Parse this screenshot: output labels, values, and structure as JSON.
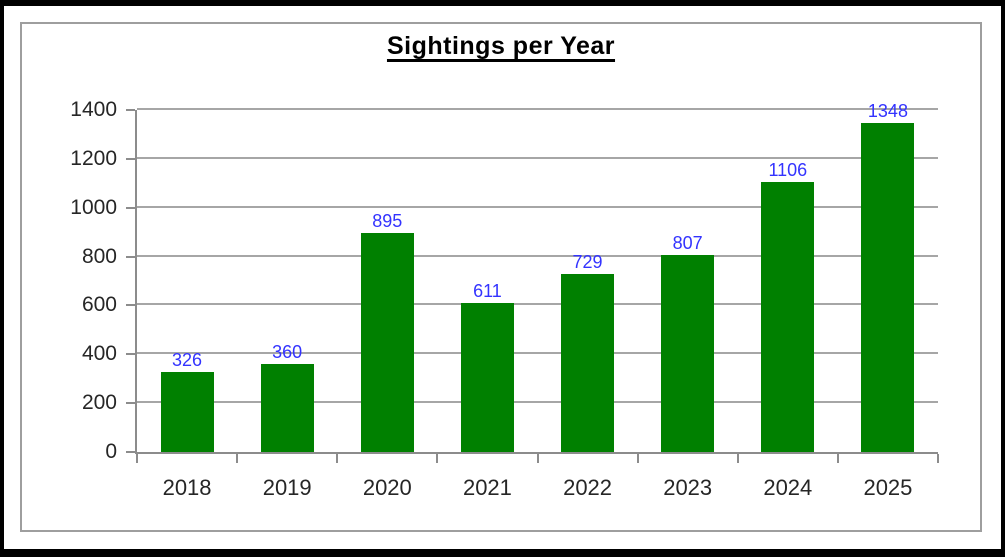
{
  "chart_data": {
    "type": "bar",
    "title": "Sightings per Year",
    "categories": [
      "2018",
      "2019",
      "2020",
      "2021",
      "2022",
      "2023",
      "2024",
      "2025"
    ],
    "values": [
      326,
      360,
      895,
      611,
      729,
      807,
      1106,
      1348
    ],
    "data_labels": [
      "326",
      "360",
      "895",
      "611",
      "729",
      "807",
      "1106",
      "1348"
    ],
    "xlabel": "",
    "ylabel": "",
    "ylim": [
      0,
      1400
    ],
    "ytick_step": 200,
    "ytick_labels": [
      "0",
      "200",
      "400",
      "600",
      "800",
      "1000",
      "1200",
      "1400"
    ],
    "grid": true,
    "legend": false
  },
  "style": {
    "bar_color": "#008000",
    "data_label_color": "#3333ff",
    "gridline_color": "#a6a6a6",
    "axis_color": "#8c8c8c",
    "axis_text_color": "#262626",
    "title_color": "#000000",
    "inner_border_color": "#9e9e9e",
    "outer_border_color": "#000000",
    "background_color": "#ffffff"
  }
}
